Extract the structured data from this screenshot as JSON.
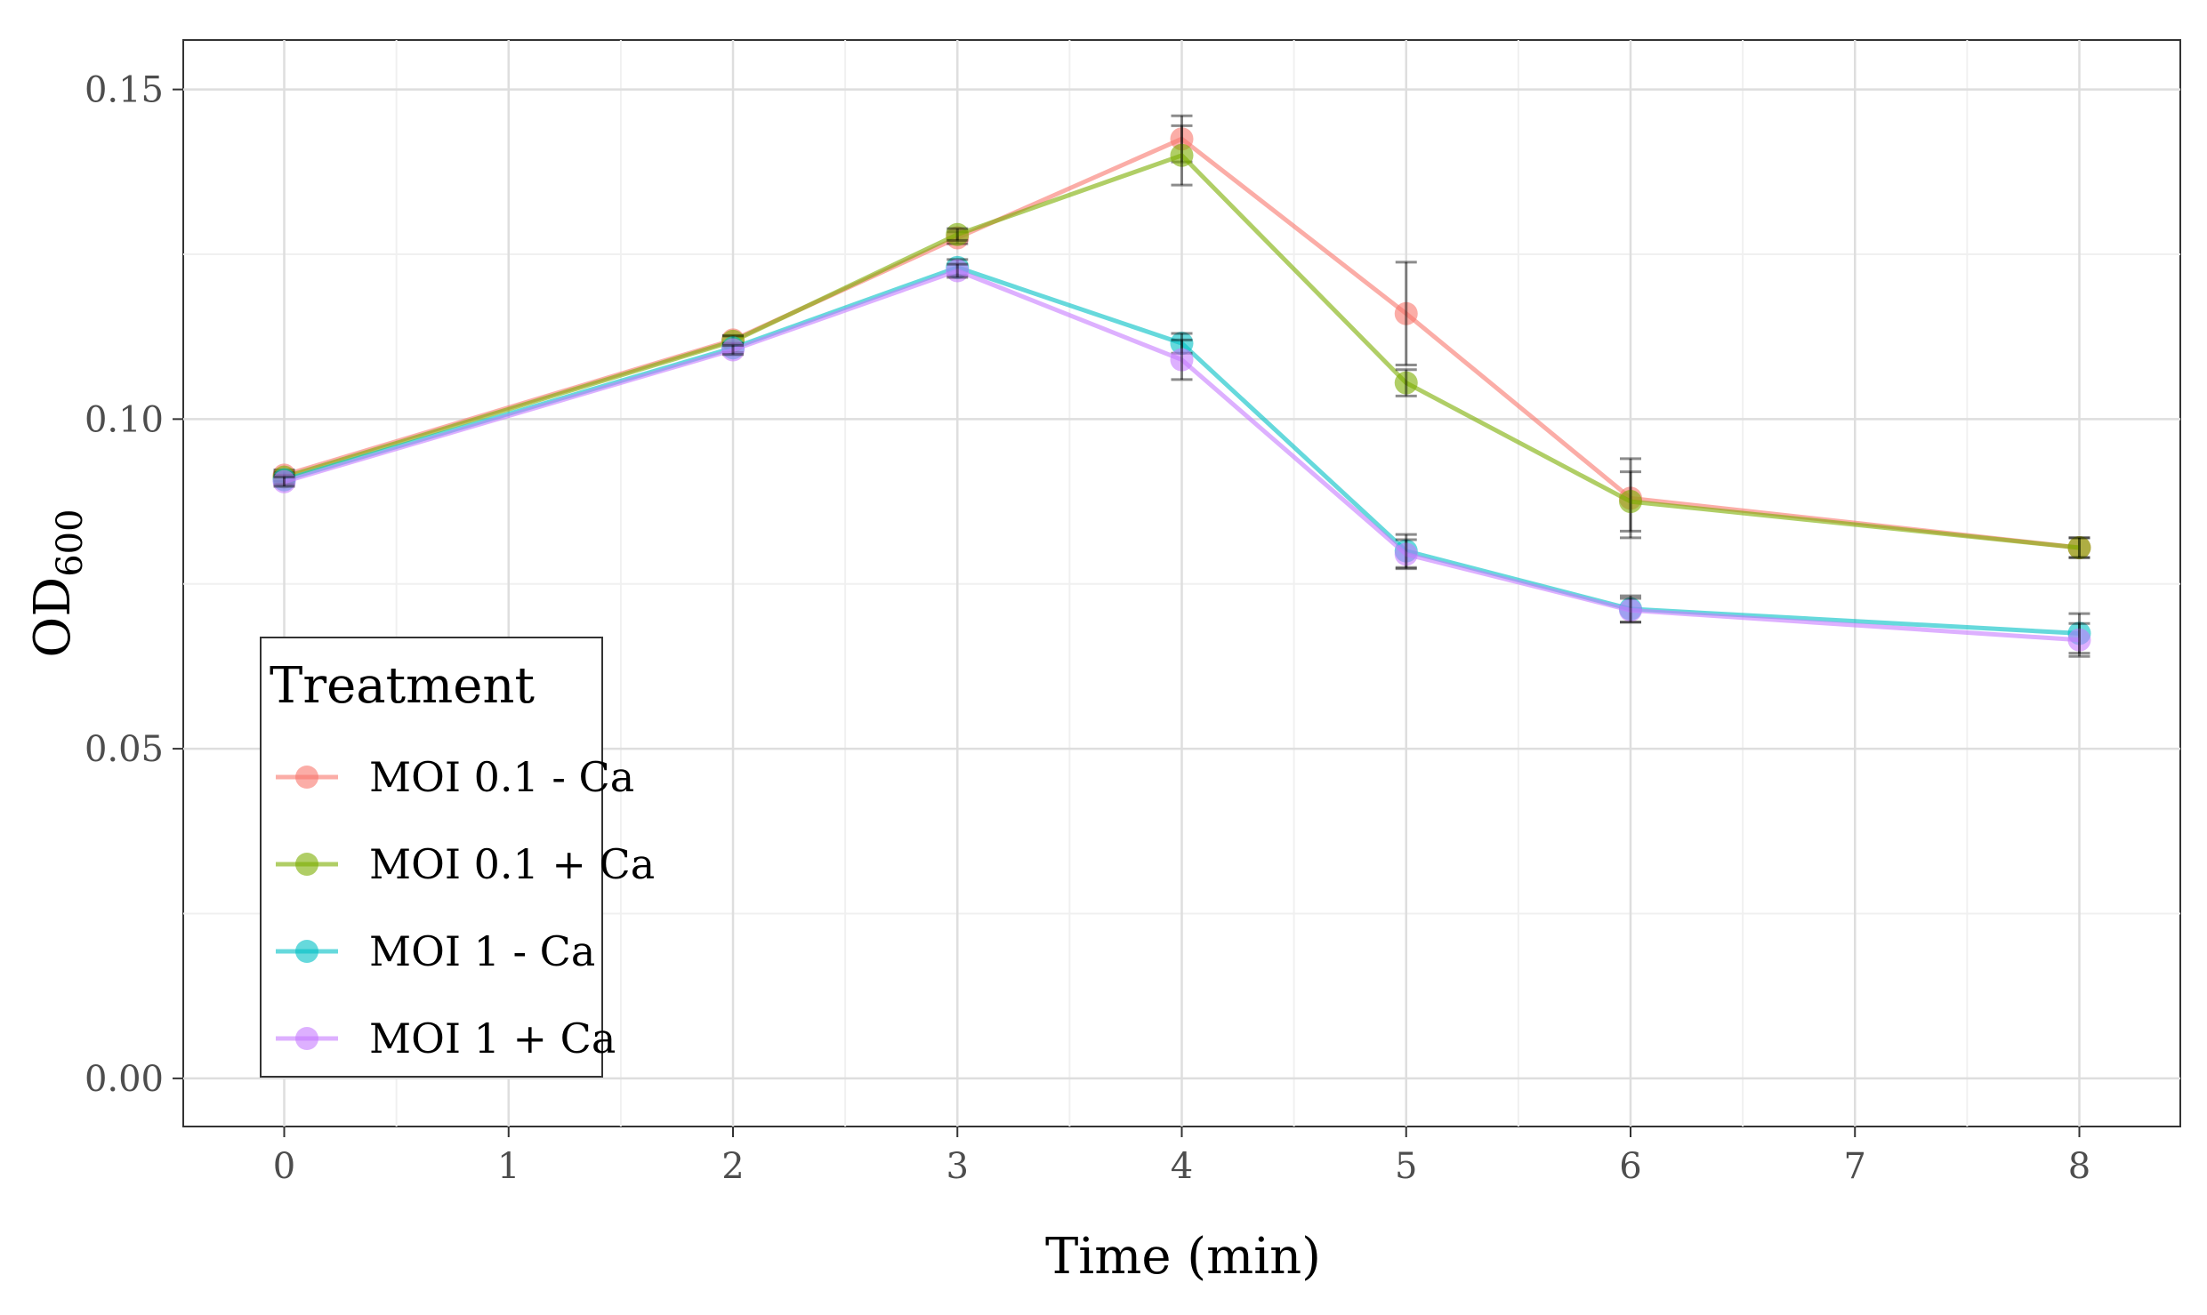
{
  "chart_data": {
    "type": "line",
    "title": "",
    "xlabel": "Time (min)",
    "ylabel_main": "OD",
    "ylabel_sub": "600",
    "x_ticks": [
      "0",
      "1",
      "2",
      "3",
      "4",
      "5",
      "6",
      "7",
      "8"
    ],
    "y_ticks": [
      "0.00",
      "0.05",
      "0.10",
      "0.15"
    ],
    "xlim": [
      -0.45,
      8.45
    ],
    "ylim": [
      -0.0073,
      0.1575
    ],
    "grid": true,
    "legend": {
      "title": "Treatment",
      "position": "bottom-left"
    },
    "x": [
      0,
      2,
      3,
      4,
      5,
      6,
      8
    ],
    "series": [
      {
        "name": "MOI 0.1 - Ca",
        "color": "#F8766D",
        "values": [
          0.0915,
          0.112,
          0.1275,
          0.1425,
          0.116,
          0.088,
          0.0805
        ],
        "errors": [
          0.0008,
          0.0007,
          0.0009,
          0.0035,
          0.0078,
          0.006,
          0.0015
        ]
      },
      {
        "name": "MOI 0.1 + Ca",
        "color": "#7CAE00",
        "values": [
          0.0912,
          0.1118,
          0.128,
          0.14,
          0.1055,
          0.0875,
          0.0805
        ],
        "errors": [
          0.0007,
          0.0008,
          0.0009,
          0.0045,
          0.002,
          0.0045,
          0.0015
        ]
      },
      {
        "name": "MOI 1 - Ca",
        "color": "#00BFC4",
        "values": [
          0.0908,
          0.1108,
          0.123,
          0.1115,
          0.08,
          0.0712,
          0.0675
        ],
        "errors": [
          0.0007,
          0.0007,
          0.0012,
          0.0015,
          0.0025,
          0.002,
          0.003
        ]
      },
      {
        "name": "MOI 1 + Ca",
        "color": "#C77CFF",
        "values": [
          0.0905,
          0.1105,
          0.1225,
          0.109,
          0.0795,
          0.071,
          0.0665
        ],
        "errors": [
          0.0007,
          0.0007,
          0.001,
          0.003,
          0.0022,
          0.0018,
          0.0025
        ]
      }
    ]
  }
}
